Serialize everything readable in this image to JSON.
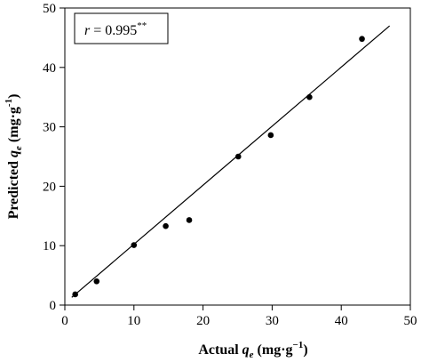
{
  "chart_data": {
    "type": "scatter",
    "xlabel": {
      "main": "Actual ",
      "q": "q",
      "sub": "e",
      "unit": " (mg·g",
      "exp": "−1",
      "close": ")"
    },
    "ylabel": {
      "main": "Predicted ",
      "q": "q",
      "sub": "e",
      "unit": " (mg·g",
      "exp": "-1",
      "close": ")"
    },
    "xlim": [
      0,
      50
    ],
    "ylim": [
      0,
      50
    ],
    "xticks": [
      0,
      10,
      20,
      30,
      40,
      50
    ],
    "yticks": [
      0,
      10,
      20,
      30,
      40,
      50
    ],
    "grid": false,
    "legend": "none",
    "annotation": {
      "r": "r",
      "eq": " = 0.995",
      "stars": "**"
    },
    "points": [
      {
        "x": 1.5,
        "y": 1.8
      },
      {
        "x": 4.6,
        "y": 4.0
      },
      {
        "x": 10.0,
        "y": 10.1
      },
      {
        "x": 14.6,
        "y": 13.3
      },
      {
        "x": 18.0,
        "y": 14.3
      },
      {
        "x": 25.1,
        "y": 25.0
      },
      {
        "x": 29.8,
        "y": 28.6
      },
      {
        "x": 35.4,
        "y": 35.0
      },
      {
        "x": 43.0,
        "y": 44.8
      }
    ],
    "fit_line": {
      "x": [
        1.0,
        47.0
      ],
      "y": [
        1.3,
        47.0
      ]
    },
    "colors": {
      "marker": "#000000",
      "line": "#000000"
    }
  }
}
